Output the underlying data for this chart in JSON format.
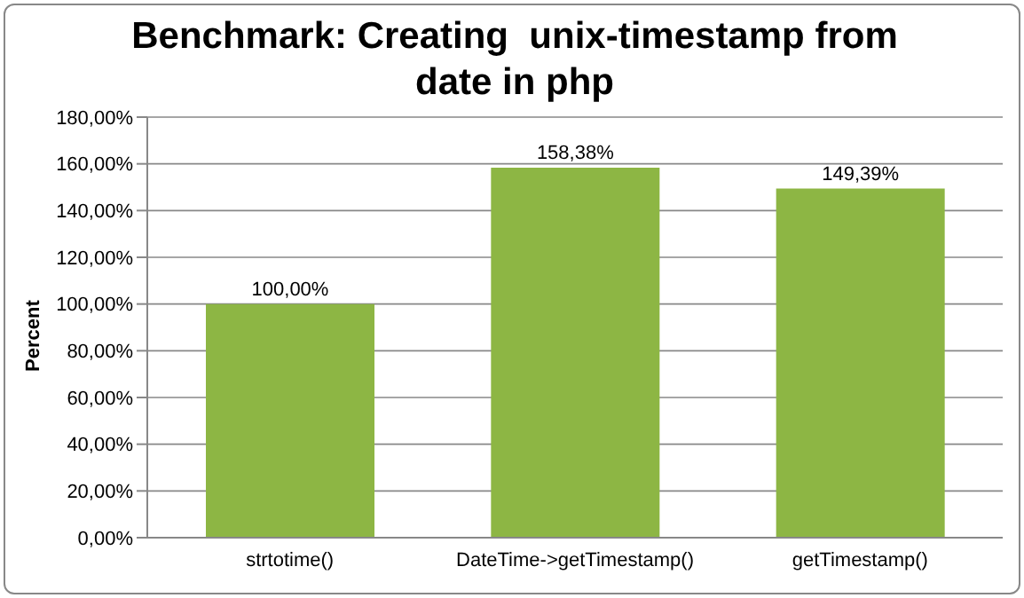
{
  "chart_data": {
    "type": "bar",
    "title": "Benchmark: Creating  unix-timestamp from date in php",
    "ylabel": "Percent",
    "categories": [
      "strtotime()",
      "DateTime->getTimestamp()",
      "getTimestamp()"
    ],
    "values": [
      100,
      158.38,
      149.39
    ],
    "value_labels": [
      "100,00%",
      "158,38%",
      "149,39%"
    ],
    "color": "#8db644",
    "ylim": [
      0,
      180
    ],
    "yticks": [
      {
        "value": 0,
        "label": "0,00%"
      },
      {
        "value": 20,
        "label": "20,00%"
      },
      {
        "value": 40,
        "label": "40,00%"
      },
      {
        "value": 60,
        "label": "60,00%"
      },
      {
        "value": 80,
        "label": "80,00%"
      },
      {
        "value": 100,
        "label": "100,00%"
      },
      {
        "value": 120,
        "label": "120,00%"
      },
      {
        "value": 140,
        "label": "140,00%"
      },
      {
        "value": 160,
        "label": "160,00%"
      },
      {
        "value": 180,
        "label": "180,00%"
      }
    ],
    "grid": "y",
    "legend": false
  }
}
